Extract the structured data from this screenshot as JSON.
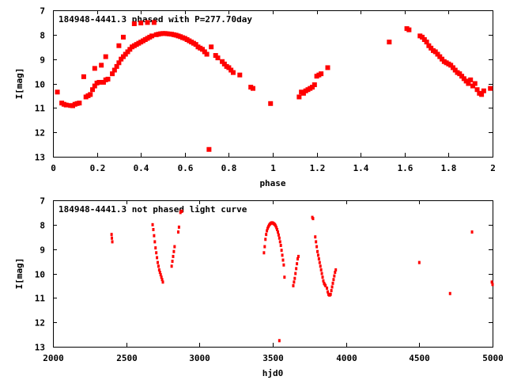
{
  "chart_data": [
    {
      "type": "scatter",
      "title": "184948-4441.3 phased with P=277.70day",
      "xlabel": "phase",
      "ylabel": "I[mag]",
      "xlim": [
        0,
        2
      ],
      "ylim": [
        7,
        13
      ],
      "y_inverted": true,
      "grid": false,
      "marker_color": "#ff0000",
      "xticks": [
        "0",
        "0.2",
        "0.4",
        "0.6",
        "0.8",
        "1",
        "1.2",
        "1.4",
        "1.6",
        "1.8",
        "2"
      ],
      "yticks": [
        "7",
        "8",
        "9",
        "10",
        "11",
        "12",
        "13"
      ],
      "points": [
        [
          0.02,
          10.35
        ],
        [
          0.04,
          10.8
        ],
        [
          0.05,
          10.85
        ],
        [
          0.06,
          10.88
        ],
        [
          0.08,
          10.9
        ],
        [
          0.09,
          10.91
        ],
        [
          0.1,
          10.85
        ],
        [
          0.11,
          10.82
        ],
        [
          0.12,
          10.8
        ],
        [
          0.14,
          9.72
        ],
        [
          0.15,
          10.55
        ],
        [
          0.16,
          10.5
        ],
        [
          0.17,
          10.45
        ],
        [
          0.18,
          10.25
        ],
        [
          0.19,
          9.38
        ],
        [
          0.19,
          10.1
        ],
        [
          0.2,
          9.98
        ],
        [
          0.21,
          9.95
        ],
        [
          0.22,
          9.25
        ],
        [
          0.23,
          9.95
        ],
        [
          0.24,
          9.85
        ],
        [
          0.24,
          8.9
        ],
        [
          0.25,
          9.82
        ],
        [
          0.27,
          9.6
        ],
        [
          0.28,
          9.45
        ],
        [
          0.29,
          9.3
        ],
        [
          0.3,
          8.45
        ],
        [
          0.3,
          9.15
        ],
        [
          0.31,
          9.0
        ],
        [
          0.32,
          8.1
        ],
        [
          0.32,
          8.9
        ],
        [
          0.33,
          8.8
        ],
        [
          0.34,
          8.7
        ],
        [
          0.35,
          8.6
        ],
        [
          0.36,
          8.5
        ],
        [
          0.37,
          8.45
        ],
        [
          0.37,
          7.55
        ],
        [
          0.38,
          8.4
        ],
        [
          0.39,
          8.35
        ],
        [
          0.4,
          7.52
        ],
        [
          0.4,
          8.3
        ],
        [
          0.41,
          8.25
        ],
        [
          0.42,
          8.2
        ],
        [
          0.43,
          7.5
        ],
        [
          0.43,
          8.15
        ],
        [
          0.44,
          8.1
        ],
        [
          0.45,
          8.05
        ],
        [
          0.46,
          7.5
        ],
        [
          0.47,
          8.0
        ],
        [
          0.48,
          7.98
        ],
        [
          0.49,
          7.96
        ],
        [
          0.5,
          7.95
        ],
        [
          0.51,
          7.95
        ],
        [
          0.52,
          7.96
        ],
        [
          0.53,
          7.97
        ],
        [
          0.54,
          7.98
        ],
        [
          0.55,
          8.0
        ],
        [
          0.56,
          8.02
        ],
        [
          0.57,
          8.05
        ],
        [
          0.58,
          8.08
        ],
        [
          0.59,
          8.12
        ],
        [
          0.6,
          8.15
        ],
        [
          0.61,
          8.2
        ],
        [
          0.62,
          8.25
        ],
        [
          0.63,
          8.3
        ],
        [
          0.64,
          8.35
        ],
        [
          0.65,
          8.4
        ],
        [
          0.66,
          8.5
        ],
        [
          0.67,
          8.55
        ],
        [
          0.68,
          8.6
        ],
        [
          0.69,
          8.7
        ],
        [
          0.7,
          8.8
        ],
        [
          0.71,
          12.7
        ],
        [
          0.72,
          8.5
        ],
        [
          0.74,
          8.85
        ],
        [
          0.75,
          8.95
        ],
        [
          0.77,
          9.1
        ],
        [
          0.78,
          9.2
        ],
        [
          0.79,
          9.3
        ],
        [
          0.8,
          9.35
        ],
        [
          0.81,
          9.45
        ],
        [
          0.82,
          9.55
        ],
        [
          0.85,
          9.65
        ],
        [
          0.9,
          10.15
        ],
        [
          0.91,
          10.2
        ],
        [
          0.99,
          10.82
        ],
        [
          1.12,
          10.55
        ],
        [
          1.13,
          10.35
        ],
        [
          1.14,
          10.4
        ],
        [
          1.15,
          10.3
        ],
        [
          1.16,
          10.25
        ],
        [
          1.17,
          10.2
        ],
        [
          1.18,
          10.15
        ],
        [
          1.19,
          10.05
        ],
        [
          1.2,
          9.7
        ],
        [
          1.21,
          9.65
        ],
        [
          1.22,
          9.6
        ],
        [
          1.25,
          9.35
        ],
        [
          1.53,
          8.3
        ],
        [
          1.61,
          7.75
        ],
        [
          1.62,
          7.8
        ],
        [
          1.67,
          8.05
        ],
        [
          1.68,
          8.1
        ],
        [
          1.69,
          8.2
        ],
        [
          1.7,
          8.3
        ],
        [
          1.71,
          8.45
        ],
        [
          1.72,
          8.55
        ],
        [
          1.73,
          8.65
        ],
        [
          1.74,
          8.7
        ],
        [
          1.75,
          8.8
        ],
        [
          1.76,
          8.9
        ],
        [
          1.77,
          9.0
        ],
        [
          1.78,
          9.1
        ],
        [
          1.79,
          9.15
        ],
        [
          1.8,
          9.2
        ],
        [
          1.81,
          9.25
        ],
        [
          1.82,
          9.35
        ],
        [
          1.83,
          9.45
        ],
        [
          1.84,
          9.55
        ],
        [
          1.85,
          9.6
        ],
        [
          1.86,
          9.7
        ],
        [
          1.87,
          9.8
        ],
        [
          1.88,
          9.9
        ],
        [
          1.89,
          10.0
        ],
        [
          1.9,
          9.85
        ],
        [
          1.91,
          10.1
        ],
        [
          1.92,
          10.0
        ],
        [
          1.93,
          10.25
        ],
        [
          1.94,
          10.4
        ],
        [
          1.95,
          10.45
        ],
        [
          1.96,
          10.3
        ],
        [
          1.99,
          10.2
        ]
      ]
    },
    {
      "type": "scatter",
      "title": "184948-4441.3 not phased light curve",
      "xlabel": "hjd0",
      "ylabel": "I[mag]",
      "xlim": [
        2000,
        5000
      ],
      "ylim": [
        7,
        13
      ],
      "y_inverted": true,
      "grid": false,
      "marker_color": "#ff0000",
      "xticks": [
        "2000",
        "2500",
        "3000",
        "3500",
        "4000",
        "4500",
        "5000"
      ],
      "yticks": [
        "7",
        "8",
        "9",
        "10",
        "11",
        "12",
        "13"
      ],
      "points": [
        [
          2400,
          8.4
        ],
        [
          2402,
          8.55
        ],
        [
          2405,
          8.7
        ],
        [
          2680,
          8.0
        ],
        [
          2685,
          8.2
        ],
        [
          2690,
          8.45
        ],
        [
          2695,
          8.7
        ],
        [
          2700,
          8.95
        ],
        [
          2705,
          9.15
        ],
        [
          2710,
          9.35
        ],
        [
          2715,
          9.55
        ],
        [
          2720,
          9.7
        ],
        [
          2725,
          9.85
        ],
        [
          2730,
          9.95
        ],
        [
          2735,
          10.05
        ],
        [
          2740,
          10.15
        ],
        [
          2745,
          10.25
        ],
        [
          2750,
          10.35
        ],
        [
          2810,
          9.7
        ],
        [
          2815,
          9.5
        ],
        [
          2820,
          9.3
        ],
        [
          2825,
          9.1
        ],
        [
          2830,
          8.9
        ],
        [
          2855,
          8.3
        ],
        [
          2860,
          8.1
        ],
        [
          2870,
          7.5
        ],
        [
          2875,
          7.45
        ],
        [
          2880,
          7.45
        ],
        [
          3440,
          9.15
        ],
        [
          3445,
          8.9
        ],
        [
          3450,
          8.6
        ],
        [
          3455,
          8.4
        ],
        [
          3460,
          8.25
        ],
        [
          3465,
          8.15
        ],
        [
          3470,
          8.08
        ],
        [
          3475,
          8.02
        ],
        [
          3480,
          7.98
        ],
        [
          3485,
          7.95
        ],
        [
          3490,
          7.93
        ],
        [
          3495,
          7.92
        ],
        [
          3500,
          7.93
        ],
        [
          3505,
          7.95
        ],
        [
          3510,
          7.97
        ],
        [
          3515,
          8.0
        ],
        [
          3520,
          8.05
        ],
        [
          3525,
          8.12
        ],
        [
          3530,
          8.2
        ],
        [
          3535,
          8.3
        ],
        [
          3540,
          8.42
        ],
        [
          3545,
          8.55
        ],
        [
          3550,
          8.7
        ],
        [
          3555,
          8.85
        ],
        [
          3560,
          9.05
        ],
        [
          3565,
          9.25
        ],
        [
          3570,
          9.45
        ],
        [
          3575,
          9.65
        ],
        [
          3580,
          10.15
        ],
        [
          3545,
          12.75
        ],
        [
          3640,
          10.5
        ],
        [
          3645,
          10.35
        ],
        [
          3650,
          10.2
        ],
        [
          3655,
          10.0
        ],
        [
          3660,
          9.8
        ],
        [
          3665,
          9.6
        ],
        [
          3670,
          9.4
        ],
        [
          3675,
          9.3
        ],
        [
          3770,
          7.7
        ],
        [
          3775,
          7.75
        ],
        [
          3790,
          8.5
        ],
        [
          3795,
          8.7
        ],
        [
          3800,
          8.9
        ],
        [
          3805,
          9.1
        ],
        [
          3810,
          9.25
        ],
        [
          3815,
          9.4
        ],
        [
          3820,
          9.55
        ],
        [
          3825,
          9.7
        ],
        [
          3830,
          9.85
        ],
        [
          3835,
          10.0
        ],
        [
          3840,
          10.15
        ],
        [
          3845,
          10.3
        ],
        [
          3850,
          10.4
        ],
        [
          3855,
          10.45
        ],
        [
          3860,
          10.5
        ],
        [
          3870,
          10.6
        ],
        [
          3875,
          10.75
        ],
        [
          3880,
          10.85
        ],
        [
          3885,
          10.88
        ],
        [
          3890,
          10.88
        ],
        [
          3895,
          10.85
        ],
        [
          3900,
          10.7
        ],
        [
          3905,
          10.55
        ],
        [
          3910,
          10.4
        ],
        [
          3915,
          10.25
        ],
        [
          3920,
          10.1
        ],
        [
          3925,
          9.95
        ],
        [
          3930,
          9.85
        ],
        [
          4500,
          9.55
        ],
        [
          4710,
          10.82
        ],
        [
          4860,
          8.3
        ],
        [
          4995,
          10.35
        ],
        [
          5000,
          10.45
        ]
      ]
    }
  ]
}
